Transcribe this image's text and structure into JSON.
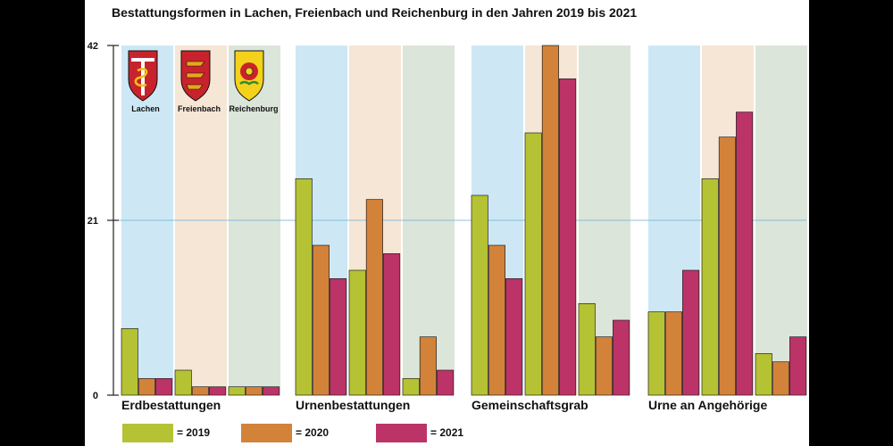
{
  "chart_data": {
    "type": "bar",
    "title": "Bestattungsformen in Lachen, Freienbach und Reichenburg in den Jahren 2019 bis 2021",
    "ylim": [
      0,
      42
    ],
    "yticks": [
      "0",
      "21",
      "42"
    ],
    "reference_line": 21,
    "grid": false,
    "legend_position": "bottom",
    "groups": [
      "Erdbestattungen",
      "Urnenbestattungen",
      "Gemeinschaftsgrab",
      "Urne an Angehörige"
    ],
    "municipalities": [
      "Lachen",
      "Freienbach",
      "Reichenburg"
    ],
    "municipality_colors": [
      "#cde8f4",
      "#f6e6d6",
      "#dbe5d9"
    ],
    "series": [
      {
        "name": "= 2019",
        "color": "#b5c234"
      },
      {
        "name": "= 2020",
        "color": "#d3823a"
      },
      {
        "name": "= 2021",
        "color": "#bc3367"
      }
    ],
    "values": [
      [
        [
          8,
          2,
          2
        ],
        [
          3,
          1,
          1
        ],
        [
          1,
          1,
          1
        ]
      ],
      [
        [
          26,
          18,
          14
        ],
        [
          15,
          23.5,
          17
        ],
        [
          2,
          7,
          3
        ]
      ],
      [
        [
          24,
          18,
          14
        ],
        [
          31.5,
          42,
          38
        ],
        [
          11,
          7,
          9
        ]
      ],
      [
        [
          10,
          10,
          15
        ],
        [
          26,
          31,
          34
        ],
        [
          5,
          4,
          7
        ]
      ]
    ],
    "icons": [
      "lachen-coat-of-arms-icon",
      "freienbach-coat-of-arms-icon",
      "reichenburg-coat-of-arms-icon"
    ]
  }
}
